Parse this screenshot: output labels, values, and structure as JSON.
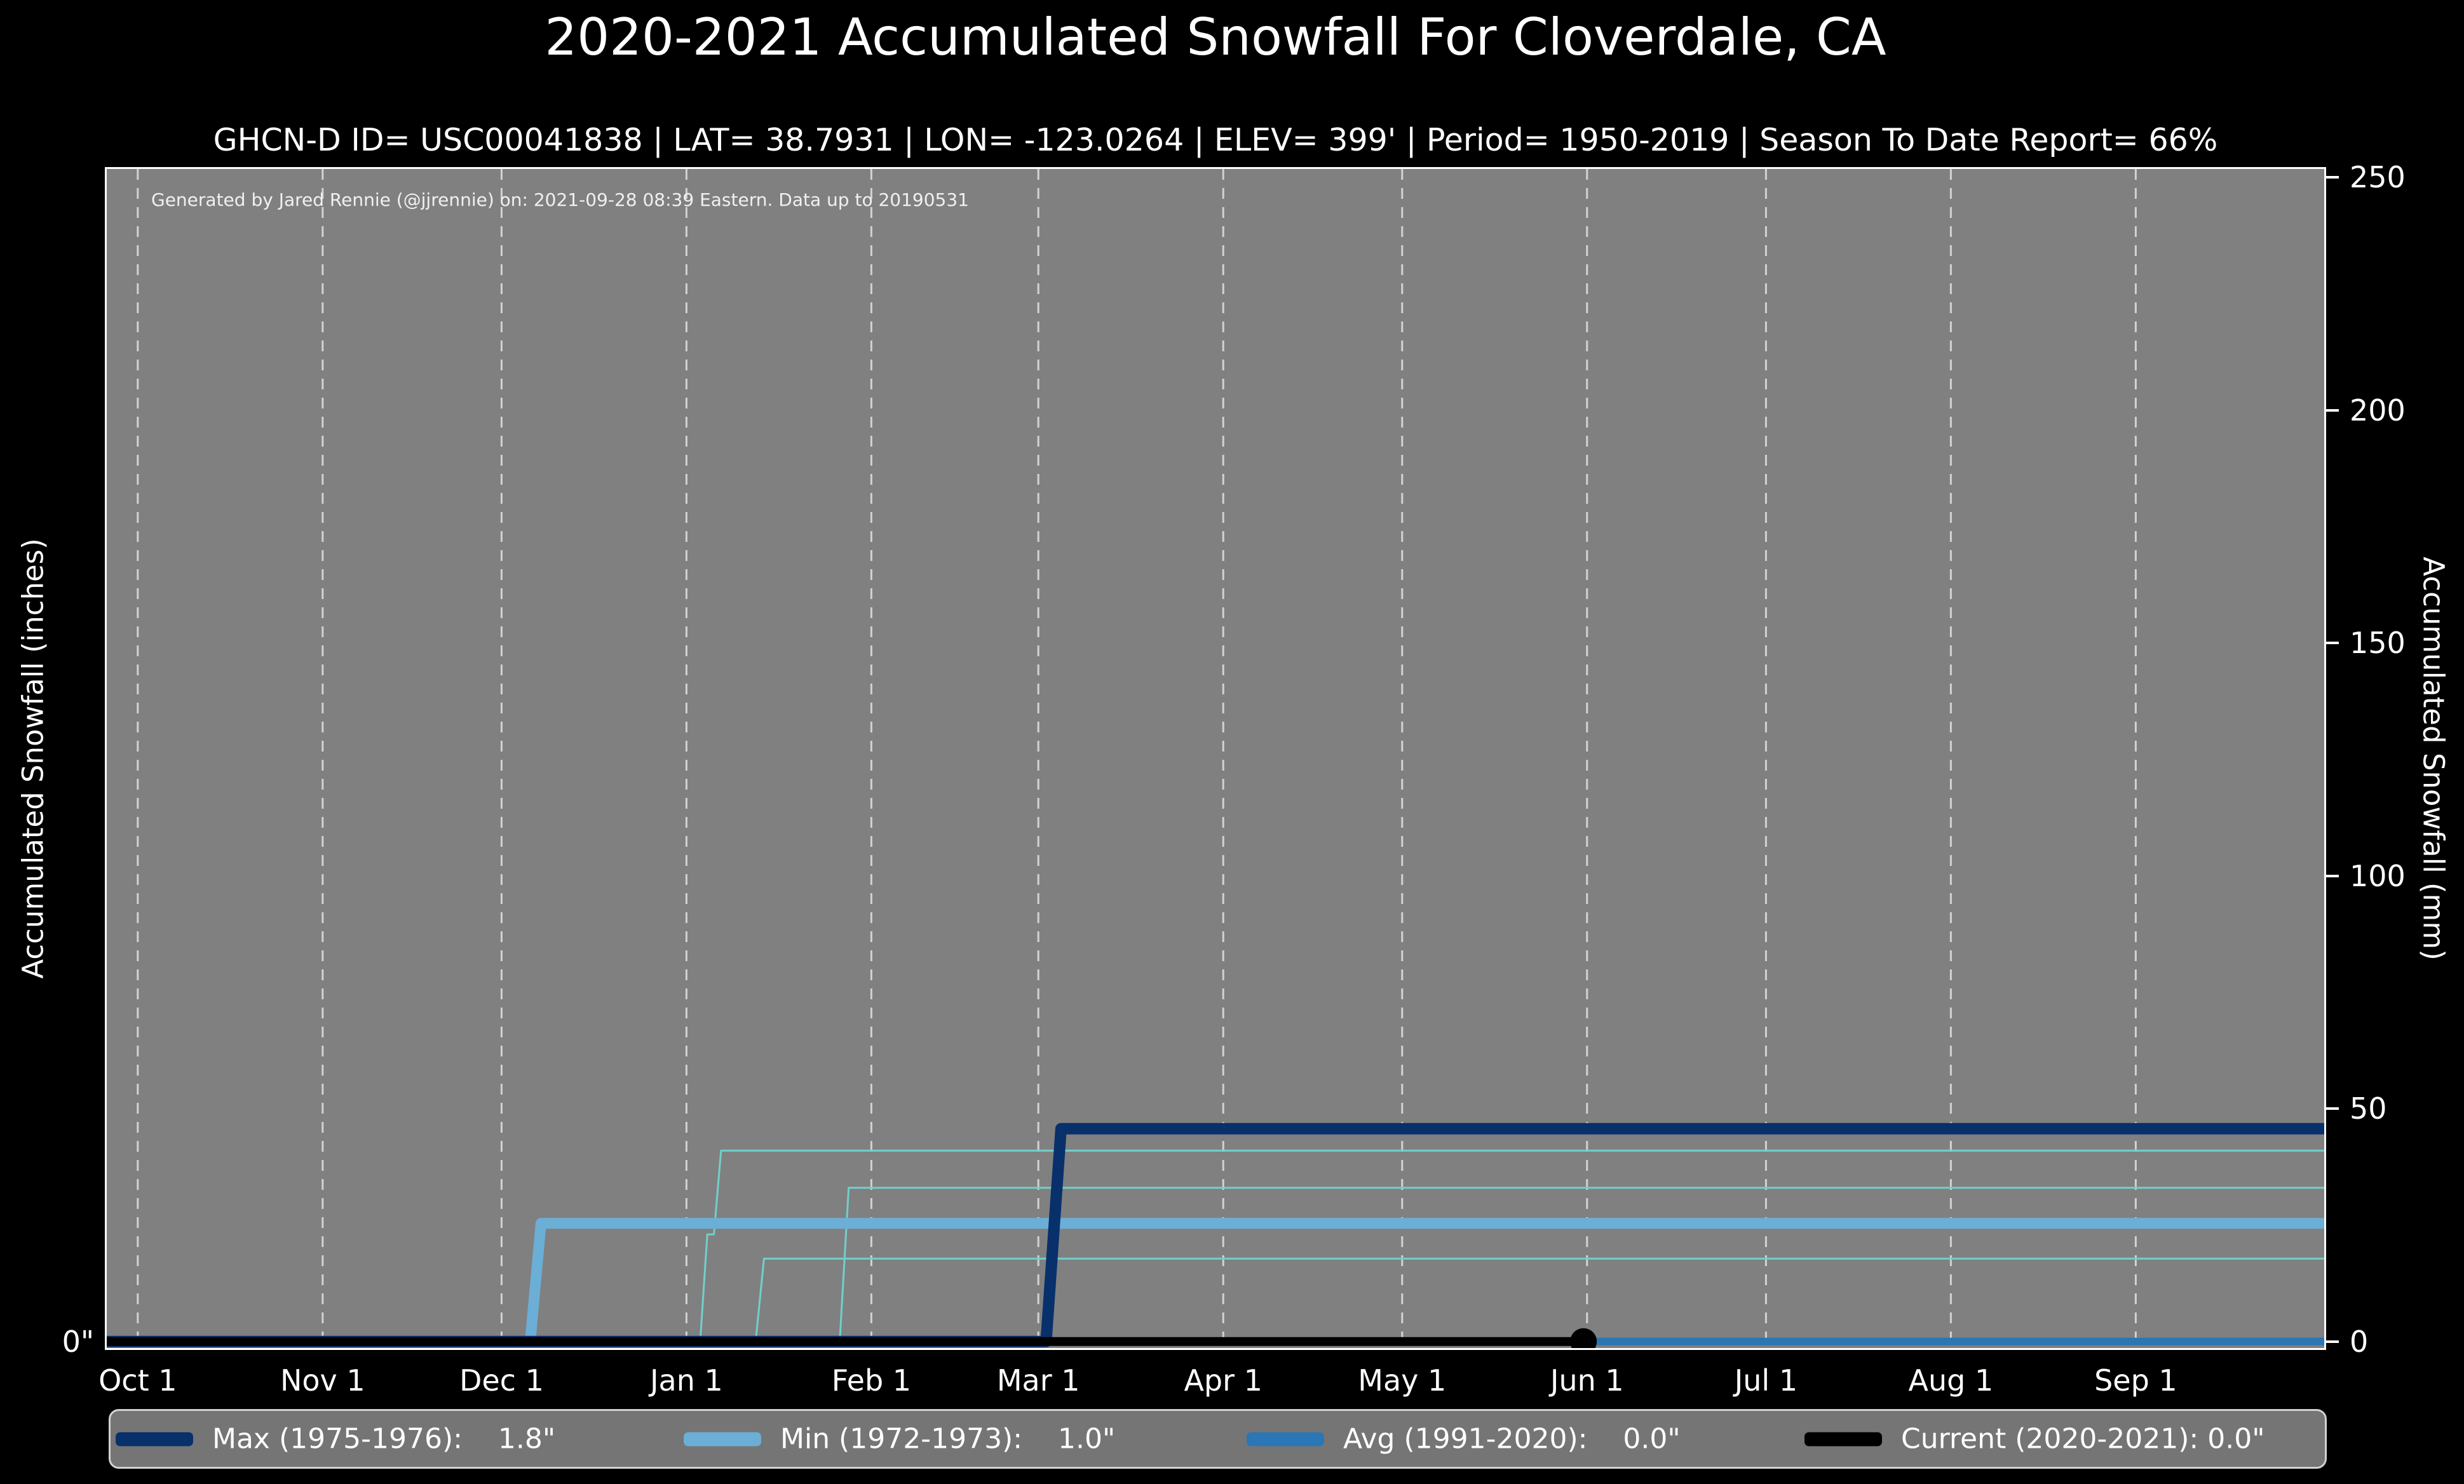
{
  "chart_data": {
    "type": "line",
    "title": "2020-2021 Accumulated Snowfall For Cloverdale, CA",
    "subtitle": "GHCN-D ID= USC00041838 | LAT= 38.7931 | LON= -123.0264 | ELEV= 399' | Period= 1950-2019 | Season To Date Report= 66%",
    "annotation": "Generated by Jared Rennie (@jjrennie) on: 2021-09-28 08:39 Eastern. Data up to 20190531",
    "background_color": "#000000",
    "plot_background_color": "#808080",
    "text_color": "#ffffff",
    "gridline_color": "#d2d2d2",
    "grid": {
      "vertical_dashed": true,
      "horizontal": false
    },
    "x_range_days": [
      -5.2,
      366.6
    ],
    "x_ticks": [
      {
        "label": "Oct 1",
        "day": 0
      },
      {
        "label": "Nov 1",
        "day": 31
      },
      {
        "label": "Dec 1",
        "day": 61
      },
      {
        "label": "Jan 1",
        "day": 92
      },
      {
        "label": "Feb 1",
        "day": 123
      },
      {
        "label": "Mar 1",
        "day": 151
      },
      {
        "label": "Apr 1",
        "day": 182
      },
      {
        "label": "May 1",
        "day": 212
      },
      {
        "label": "Jun 1",
        "day": 243
      },
      {
        "label": "Jul 1",
        "day": 273
      },
      {
        "label": "Aug 1",
        "day": 304
      },
      {
        "label": "Sep 1",
        "day": 335
      }
    ],
    "y_range_mm": [
      -1.4,
      251.8
    ],
    "y_axis_left": {
      "label": "Accumulated Snowfall (inches)",
      "tick_labels": [
        "0\""
      ],
      "tick_values_mm": [
        0
      ]
    },
    "y_axis_right": {
      "label": "Accumulated Snowfall (mm)",
      "tick_values_mm": [
        0,
        50,
        100,
        150,
        200,
        250
      ]
    },
    "series": [
      {
        "name": "avg-1991-2020",
        "color": "#2b76b4",
        "width": 12,
        "points_day_mm": [
          [
            -5.2,
            0
          ],
          [
            366.6,
            0
          ]
        ]
      },
      {
        "name": "other-season-a",
        "color": "#72cfc9",
        "width": 3,
        "points_day_mm": [
          [
            -5.2,
            0
          ],
          [
            94.3,
            0
          ],
          [
            95.5,
            23
          ],
          [
            96.6,
            23
          ],
          [
            97.8,
            41
          ],
          [
            366.6,
            41
          ]
        ]
      },
      {
        "name": "other-season-b",
        "color": "#72cfc9",
        "width": 3,
        "points_day_mm": [
          [
            -5.2,
            0
          ],
          [
            103.6,
            0
          ],
          [
            105,
            17.8
          ],
          [
            366.6,
            17.8
          ]
        ]
      },
      {
        "name": "other-season-c",
        "color": "#72cfc9",
        "width": 3,
        "points_day_mm": [
          [
            -5.2,
            0
          ],
          [
            117.7,
            0
          ],
          [
            119.2,
            33
          ],
          [
            366.6,
            33
          ]
        ]
      },
      {
        "name": "min-1972-1973",
        "color": "#6baed6",
        "width": 17,
        "points_day_mm": [
          [
            -5.2,
            0
          ],
          [
            65.8,
            0
          ],
          [
            67.6,
            25.4
          ],
          [
            366.6,
            25.4
          ]
        ]
      },
      {
        "name": "max-1975-1976",
        "color": "#08306b",
        "width": 18,
        "points_day_mm": [
          [
            -5.2,
            0
          ],
          [
            152.3,
            0
          ],
          [
            154.8,
            45.7
          ],
          [
            366.6,
            45.7
          ]
        ]
      },
      {
        "name": "current-2020-2021",
        "color": "#000000",
        "width": 14,
        "points_day_mm": [
          [
            -5.2,
            0
          ],
          [
            242.4,
            0
          ]
        ],
        "end_marker": {
          "day": 242.4,
          "mm": 0,
          "radius": 21,
          "color": "#000000"
        }
      }
    ],
    "legend": {
      "position": "bottom",
      "background_color": "#757575",
      "border_color": "#d2d2d2",
      "items": [
        {
          "label": "Max (1975-1976):    1.8\"",
          "value_inches": "1.8\"",
          "color": "#08306b"
        },
        {
          "label": "Min (1972-1973):    1.0\"",
          "value_inches": "1.0\"",
          "color": "#6baed6"
        },
        {
          "label": "Avg (1991-2020):    0.0\"",
          "value_inches": "0.0\"",
          "color": "#2b76b4"
        },
        {
          "label": "Current (2020-2021): 0.0\"",
          "value_inches": "0.0\"",
          "color": "#000000"
        }
      ]
    }
  }
}
